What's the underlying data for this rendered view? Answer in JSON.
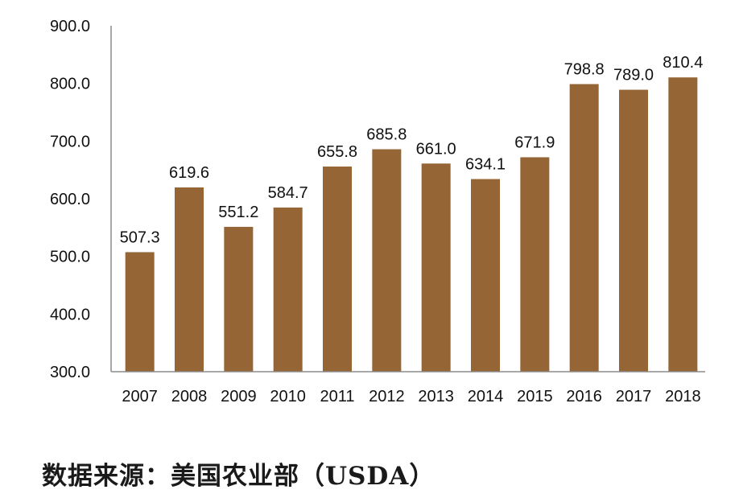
{
  "chart_data": {
    "type": "bar",
    "title": "",
    "xlabel": "",
    "ylabel": "",
    "categories": [
      "2007",
      "2008",
      "2009",
      "2010",
      "2011",
      "2012",
      "2013",
      "2014",
      "2015",
      "2016",
      "2017",
      "2018"
    ],
    "values": [
      507.3,
      619.6,
      551.2,
      584.7,
      655.8,
      685.8,
      661.0,
      634.1,
      671.9,
      798.8,
      789.0,
      810.4
    ],
    "value_labels": [
      "507.3",
      "619.6",
      "551.2",
      "584.7",
      "655.8",
      "685.8",
      "661.0",
      "634.1",
      "671.9",
      "798.8",
      "789.0",
      "810.4"
    ],
    "ylim": [
      300,
      900
    ],
    "y_ticks": [
      "300.0",
      "400.0",
      "500.0",
      "600.0",
      "700.0",
      "800.0",
      "900.0"
    ],
    "grid": false,
    "legend": "none",
    "bar_color": "#956535"
  },
  "source": {
    "text": "数据来源：美国农业部（USDA）"
  }
}
